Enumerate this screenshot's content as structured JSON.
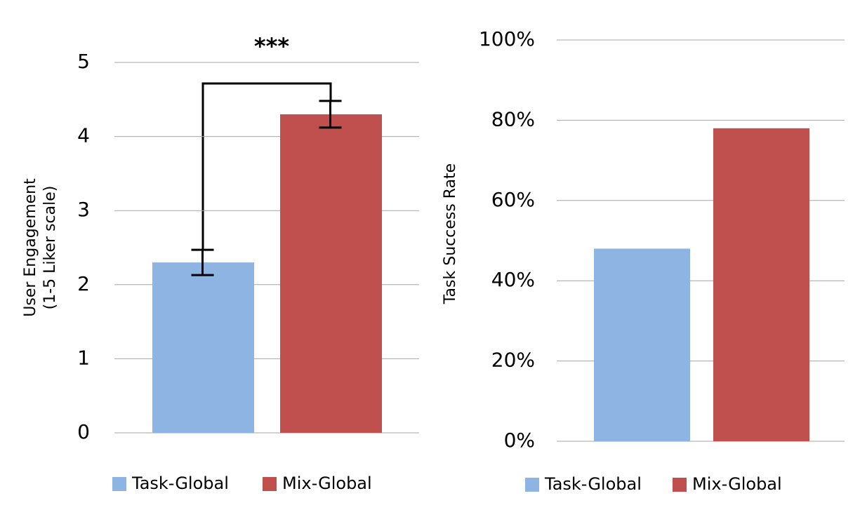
{
  "chart_data": [
    {
      "type": "bar",
      "ylabel": [
        "User Engagement",
        "(1-5 Liker scale)"
      ],
      "annotation": "***",
      "ylim": [
        0,
        5
      ],
      "yticks": [
        0,
        1,
        2,
        3,
        4,
        5
      ],
      "grid": true,
      "legend": "bottom",
      "series": [
        {
          "name": "Task-Global",
          "color": "#8eb4e3",
          "values": [
            2.3
          ],
          "errors": [
            0.17
          ]
        },
        {
          "name": "Mix-Global",
          "color": "#c0504d",
          "values": [
            4.3
          ],
          "errors": [
            0.18
          ]
        }
      ]
    },
    {
      "type": "bar",
      "ylabel": "Task Success Rate",
      "ylim": [
        0,
        100
      ],
      "yticks": [
        {
          "value": 0,
          "label": "0%"
        },
        {
          "value": 20,
          "label": "20%"
        },
        {
          "value": 40,
          "label": "40%"
        },
        {
          "value": 60,
          "label": "60%"
        },
        {
          "value": 80,
          "label": "80%"
        },
        {
          "value": 100,
          "label": "100%"
        }
      ],
      "grid": true,
      "legend": "bottom",
      "series": [
        {
          "name": "Task-Global",
          "color": "#8eb4e3",
          "values": [
            48
          ]
        },
        {
          "name": "Mix-Global",
          "color": "#c0504d",
          "values": [
            78
          ]
        }
      ]
    }
  ]
}
